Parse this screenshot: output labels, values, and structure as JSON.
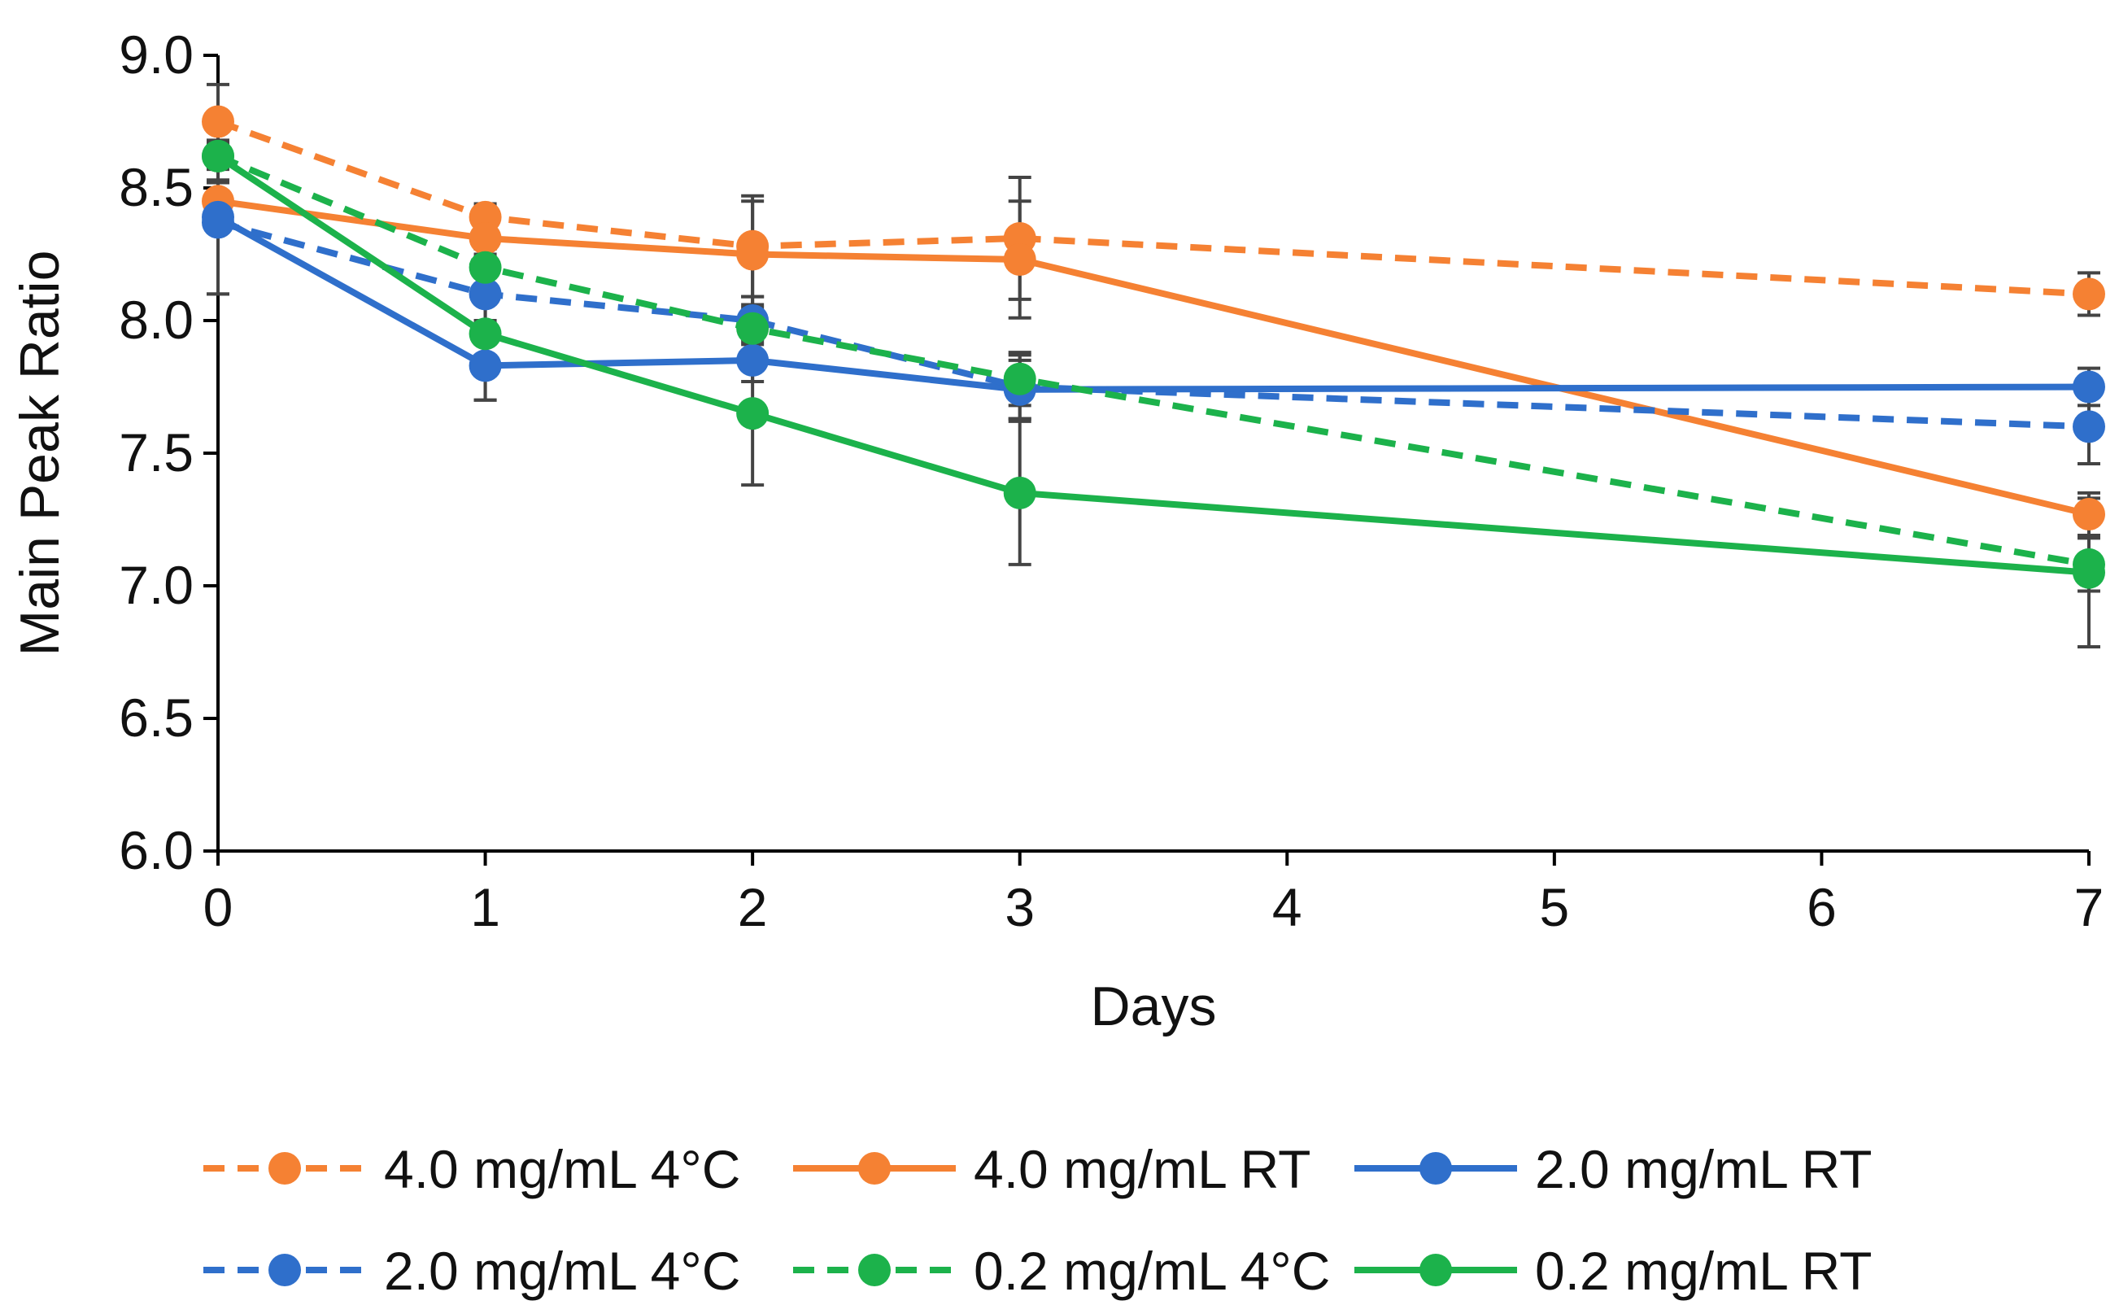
{
  "chart_data": {
    "type": "line",
    "title": "",
    "xlabel": "Days",
    "ylabel": "Main Peak Ratio",
    "xlim": [
      0,
      7
    ],
    "ylim": [
      6.0,
      9.0
    ],
    "x_ticks": [
      "0",
      "1",
      "2",
      "3",
      "4",
      "5",
      "6",
      "7"
    ],
    "y_ticks": [
      "6.0",
      "6.5",
      "7.0",
      "7.5",
      "8.0",
      "8.5",
      "9.0"
    ],
    "grid": false,
    "legend_position": "bottom",
    "series": [
      {
        "name": "4.0 mg/mL 4°C",
        "color": "#F58133",
        "dashed": true,
        "x": [
          0,
          1,
          2,
          3,
          7
        ],
        "y": [
          8.75,
          8.39,
          8.28,
          8.31,
          8.1
        ],
        "err": [
          0.14,
          0.05,
          0.19,
          0.23,
          0.08
        ]
      },
      {
        "name": "4.0 mg/mL RT",
        "color": "#F58133",
        "dashed": false,
        "x": [
          0,
          1,
          2,
          3,
          7
        ],
        "y": [
          8.45,
          8.31,
          8.25,
          8.23,
          7.27
        ],
        "err": [
          0.08,
          0.06,
          0.2,
          0.22,
          0.08
        ]
      },
      {
        "name": "2.0 mg/mL RT",
        "color": "#2F6FCB",
        "dashed": false,
        "x": [
          0,
          1,
          2,
          3,
          7
        ],
        "y": [
          8.39,
          7.83,
          7.85,
          7.74,
          7.75
        ],
        "err": [
          0.29,
          0.13,
          0.08,
          0.11,
          0.07
        ]
      },
      {
        "name": "2.0 mg/mL 4°C",
        "color": "#2F6FCB",
        "dashed": true,
        "x": [
          0,
          1,
          2,
          3,
          7
        ],
        "y": [
          8.37,
          8.1,
          8.0,
          7.75,
          7.6
        ],
        "err": [
          0.27,
          0.1,
          0.09,
          0.12,
          0.14
        ]
      },
      {
        "name": "0.2 mg/mL 4°C",
        "color": "#1CB24B",
        "dashed": true,
        "x": [
          0,
          1,
          2,
          3,
          7
        ],
        "y": [
          8.62,
          8.2,
          7.97,
          7.78,
          7.08
        ],
        "err": [
          0.1,
          0.07,
          0.09,
          0.1,
          0.1
        ]
      },
      {
        "name": "0.2 mg/mL RT",
        "color": "#1CB24B",
        "dashed": false,
        "x": [
          0,
          1,
          2,
          3,
          7
        ],
        "y": [
          8.62,
          7.95,
          7.65,
          7.35,
          7.05
        ],
        "err": [
          0.05,
          0.25,
          0.27,
          0.27,
          0.28
        ]
      }
    ]
  }
}
